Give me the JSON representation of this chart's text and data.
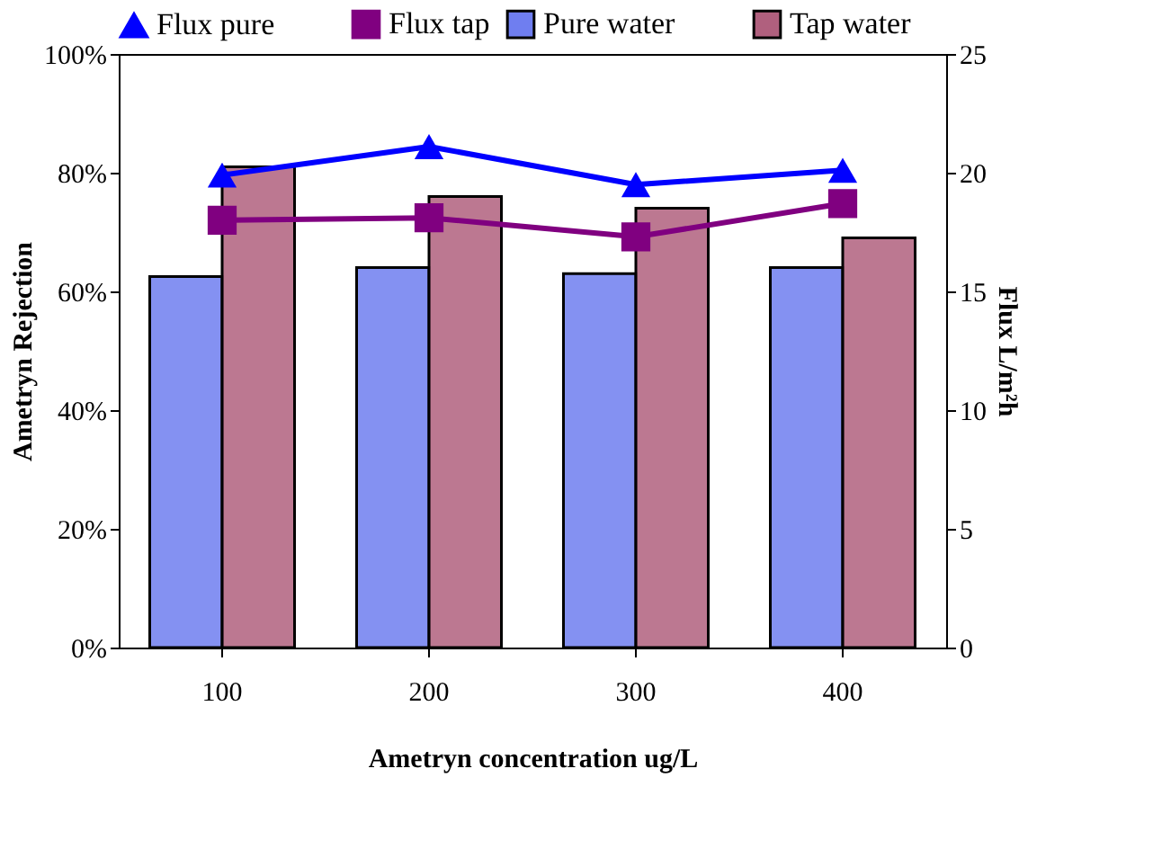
{
  "chart_data": {
    "type": "bar",
    "xlabel": "Ametryn concentration ug/L",
    "ylabel": "Ametryn Rejection",
    "y2label": "Flux L/m²h",
    "categories": [
      "100",
      "200",
      "300",
      "400"
    ],
    "series": [
      {
        "name": "Pure water",
        "color": "#6f7ef0",
        "values": [
          62.5,
          64,
          63,
          64
        ]
      },
      {
        "name": "Tap water",
        "color": "#b0607e",
        "values": [
          81,
          76,
          74,
          69
        ]
      },
      {
        "name": "Flux pure",
        "type": "line",
        "axis": "y2",
        "color": "#0000ff",
        "marker": "triangle",
        "values": [
          19.9,
          21.1,
          19.5,
          20.1
        ]
      },
      {
        "name": "Flux tap",
        "type": "line",
        "axis": "y2",
        "color": "#800080",
        "marker": "square",
        "values": [
          18.0,
          18.1,
          17.3,
          18.7
        ]
      }
    ],
    "ylim": [
      0,
      100
    ],
    "yticks": [
      {
        "value": 0,
        "label": "0%"
      },
      {
        "value": 20,
        "label": "20%"
      },
      {
        "value": 40,
        "label": "40%"
      },
      {
        "value": 60,
        "label": "60%"
      },
      {
        "value": 80,
        "label": "80%"
      },
      {
        "value": 100,
        "label": "100%"
      }
    ],
    "y2lim": [
      0,
      25
    ],
    "y2ticks": [
      0,
      5,
      10,
      15,
      20,
      25
    ],
    "legend": "top",
    "grid": false
  }
}
